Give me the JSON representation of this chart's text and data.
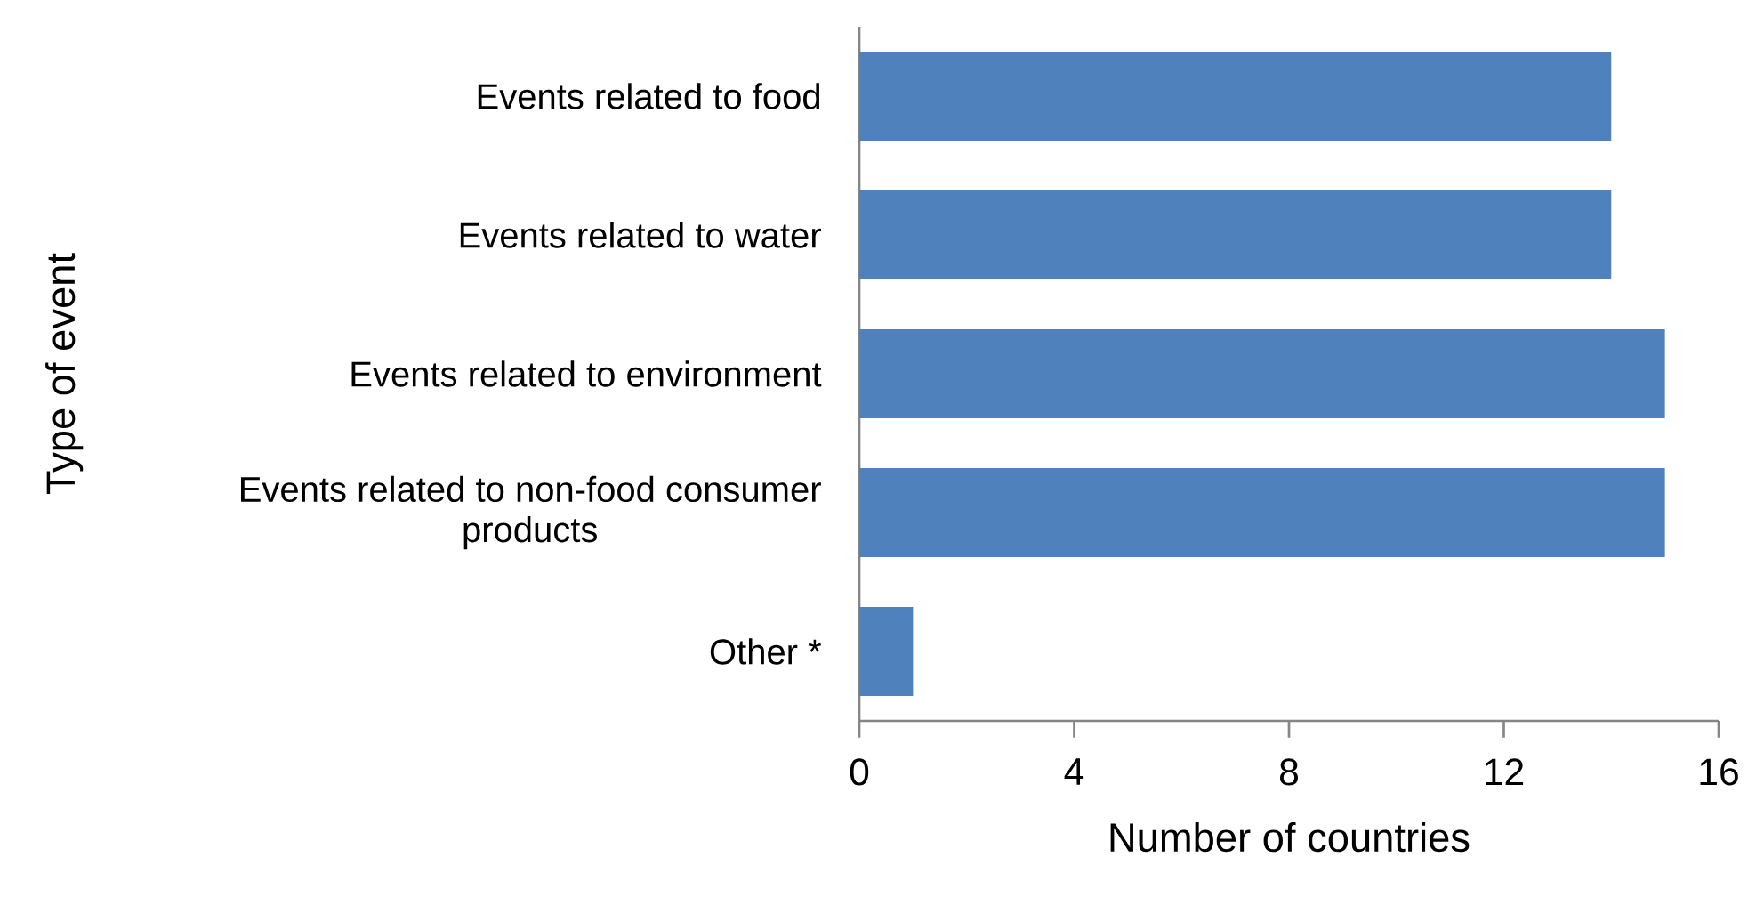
{
  "chart_data": {
    "type": "bar",
    "orientation": "horizontal",
    "xlabel": "Number of countries",
    "ylabel": "Type of event",
    "categories": [
      "Events related to food",
      "Events related to water",
      "Events related to environment",
      "Events related to non-food consumer products",
      "Other *"
    ],
    "values": [
      14,
      14,
      15,
      15,
      1
    ],
    "color": "#4f81bd",
    "xlim": [
      0,
      16
    ],
    "xticks": [
      0,
      4,
      8,
      12,
      16
    ],
    "grid": false
  }
}
